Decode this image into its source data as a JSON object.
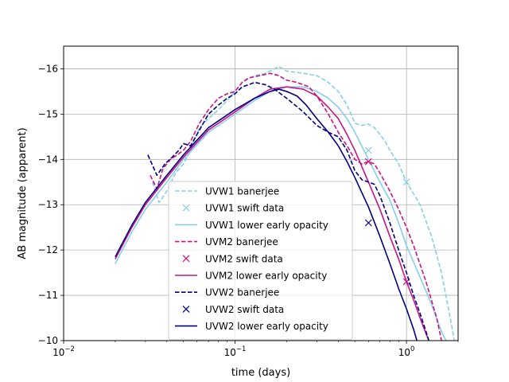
{
  "chart_data": {
    "type": "line",
    "title": "",
    "xlabel": "time (days)",
    "ylabel": "AB magnitude (apparent)",
    "x_scale": "log",
    "xlim": [
      0.01,
      2.0
    ],
    "ylim": [
      -10,
      -16.5
    ],
    "y_inverted": true,
    "grid": true,
    "legend_position": "lower-center",
    "x_ticks": [
      {
        "value": 0.01,
        "label": "10",
        "exp": "−2"
      },
      {
        "value": 0.1,
        "label": "10",
        "exp": "−1"
      },
      {
        "value": 1,
        "label": "10",
        "exp": "0"
      }
    ],
    "y_ticks": [
      {
        "value": -16,
        "label": "−16"
      },
      {
        "value": -15,
        "label": "−15"
      },
      {
        "value": -14,
        "label": "−14"
      },
      {
        "value": -13,
        "label": "−13"
      },
      {
        "value": -12,
        "label": "−12"
      },
      {
        "value": -11,
        "label": "−11"
      },
      {
        "value": -10,
        "label": "−10"
      }
    ],
    "series": [
      {
        "name": "UVW1 banerjee",
        "style": "dashed",
        "color": "#87ceeb",
        "x": [
          0.033,
          0.036,
          0.04,
          0.045,
          0.05,
          0.055,
          0.062,
          0.07,
          0.08,
          0.09,
          0.1,
          0.11,
          0.13,
          0.15,
          0.17,
          0.18,
          0.2,
          0.25,
          0.3,
          0.35,
          0.4,
          0.45,
          0.5,
          0.55,
          0.6,
          0.65,
          0.7,
          0.75,
          0.8,
          0.9,
          1.0,
          1.2,
          1.4,
          1.6,
          1.8,
          1.9
        ],
        "y": [
          -13.5,
          -13.05,
          -13.3,
          -13.7,
          -13.9,
          -14.2,
          -14.7,
          -14.9,
          -15.1,
          -15.3,
          -15.5,
          -15.7,
          -15.85,
          -15.9,
          -16.0,
          -16.05,
          -15.95,
          -15.9,
          -15.85,
          -15.7,
          -15.5,
          -15.2,
          -14.8,
          -14.75,
          -14.78,
          -14.7,
          -14.55,
          -14.4,
          -14.2,
          -13.9,
          -13.5,
          -13.0,
          -12.3,
          -11.5,
          -10.5,
          -10.0
        ]
      },
      {
        "name": "UVW1 swift data",
        "style": "markers",
        "color": "#87ceeb",
        "x": [
          0.6,
          1.0
        ],
        "y": [
          -14.2,
          -13.5
        ]
      },
      {
        "name": "UVW1 lower early opacity",
        "style": "solid",
        "color": "#87ceeb",
        "x": [
          0.02,
          0.025,
          0.03,
          0.04,
          0.05,
          0.07,
          0.1,
          0.13,
          0.16,
          0.2,
          0.25,
          0.3,
          0.35,
          0.4,
          0.45,
          0.5,
          0.6,
          0.7,
          0.8,
          0.9,
          1.0,
          1.2,
          1.4,
          1.6,
          1.7
        ],
        "y": [
          -11.7,
          -12.4,
          -12.9,
          -13.5,
          -14.0,
          -14.6,
          -15.0,
          -15.3,
          -15.5,
          -15.6,
          -15.6,
          -15.5,
          -15.35,
          -15.15,
          -14.9,
          -14.6,
          -14.0,
          -13.5,
          -13.1,
          -12.6,
          -12.1,
          -11.4,
          -10.8,
          -10.2,
          -10.0
        ]
      },
      {
        "name": "UVM2 banerjee",
        "style": "dashed",
        "color": "#c71585",
        "x": [
          0.032,
          0.035,
          0.038,
          0.042,
          0.046,
          0.05,
          0.055,
          0.062,
          0.07,
          0.08,
          0.09,
          0.1,
          0.11,
          0.12,
          0.14,
          0.16,
          0.18,
          0.2,
          0.23,
          0.27,
          0.3,
          0.35,
          0.4,
          0.45,
          0.5,
          0.55,
          0.6,
          0.65,
          0.7,
          0.8,
          0.9,
          1.0,
          1.1,
          1.3,
          1.5,
          1.6
        ],
        "y": [
          -13.65,
          -13.35,
          -13.8,
          -14.0,
          -14.1,
          -14.2,
          -14.4,
          -14.8,
          -15.1,
          -15.35,
          -15.45,
          -15.5,
          -15.7,
          -15.8,
          -15.85,
          -15.9,
          -15.85,
          -15.75,
          -15.7,
          -15.6,
          -15.4,
          -15.0,
          -14.6,
          -14.3,
          -14.0,
          -13.9,
          -13.95,
          -13.9,
          -13.7,
          -13.3,
          -12.9,
          -12.5,
          -12.1,
          -11.3,
          -10.5,
          -10.0
        ]
      },
      {
        "name": "UVM2 swift data",
        "style": "markers",
        "color": "#c71585",
        "x": [
          0.6,
          1.0
        ],
        "y": [
          -13.95,
          -11.3
        ]
      },
      {
        "name": "UVM2 lower early opacity",
        "style": "solid",
        "color": "#c71585",
        "x": [
          0.02,
          0.025,
          0.03,
          0.04,
          0.05,
          0.07,
          0.1,
          0.13,
          0.16,
          0.2,
          0.25,
          0.3,
          0.35,
          0.4,
          0.45,
          0.5,
          0.6,
          0.7,
          0.8,
          0.9,
          1.0,
          1.1,
          1.2,
          1.3,
          1.35
        ],
        "y": [
          -11.8,
          -12.5,
          -13.0,
          -13.6,
          -14.05,
          -14.65,
          -15.05,
          -15.35,
          -15.55,
          -15.6,
          -15.55,
          -15.4,
          -15.15,
          -14.9,
          -14.55,
          -14.2,
          -13.5,
          -12.9,
          -12.3,
          -11.8,
          -11.3,
          -10.9,
          -10.5,
          -10.15,
          -10.0
        ]
      },
      {
        "name": "UVW2 banerjee",
        "style": "dashed",
        "color": "#000080",
        "x": [
          0.031,
          0.035,
          0.039,
          0.043,
          0.047,
          0.05,
          0.055,
          0.062,
          0.07,
          0.08,
          0.09,
          0.1,
          0.11,
          0.12,
          0.13,
          0.15,
          0.17,
          0.2,
          0.25,
          0.3,
          0.35,
          0.4,
          0.45,
          0.5,
          0.55,
          0.6,
          0.65,
          0.7,
          0.8,
          0.9,
          1.0,
          1.1,
          1.2,
          1.3,
          1.35
        ],
        "y": [
          -14.1,
          -13.65,
          -13.9,
          -14.05,
          -14.2,
          -14.35,
          -14.3,
          -14.65,
          -15.0,
          -15.2,
          -15.35,
          -15.45,
          -15.6,
          -15.65,
          -15.7,
          -15.65,
          -15.55,
          -15.35,
          -15.05,
          -14.75,
          -14.6,
          -14.5,
          -14.2,
          -13.75,
          -13.55,
          -13.5,
          -13.45,
          -13.2,
          -12.6,
          -12.0,
          -11.5,
          -11.0,
          -10.6,
          -10.2,
          -10.0
        ]
      },
      {
        "name": "UVW2 swift data",
        "style": "markers",
        "color": "#000080",
        "x": [
          0.6
        ],
        "y": [
          -12.6
        ]
      },
      {
        "name": "UVW2 lower early opacity",
        "style": "solid",
        "color": "#000080",
        "x": [
          0.02,
          0.025,
          0.03,
          0.04,
          0.05,
          0.07,
          0.1,
          0.13,
          0.16,
          0.18,
          0.2,
          0.23,
          0.26,
          0.3,
          0.35,
          0.4,
          0.45,
          0.5,
          0.6,
          0.7,
          0.8,
          0.9,
          1.0,
          1.1,
          1.15
        ],
        "y": [
          -11.85,
          -12.55,
          -13.05,
          -13.65,
          -14.1,
          -14.7,
          -15.1,
          -15.35,
          -15.5,
          -15.55,
          -15.5,
          -15.4,
          -15.2,
          -14.9,
          -14.6,
          -14.3,
          -13.95,
          -13.6,
          -12.95,
          -12.3,
          -11.7,
          -11.15,
          -10.7,
          -10.25,
          -10.0
        ]
      }
    ]
  }
}
